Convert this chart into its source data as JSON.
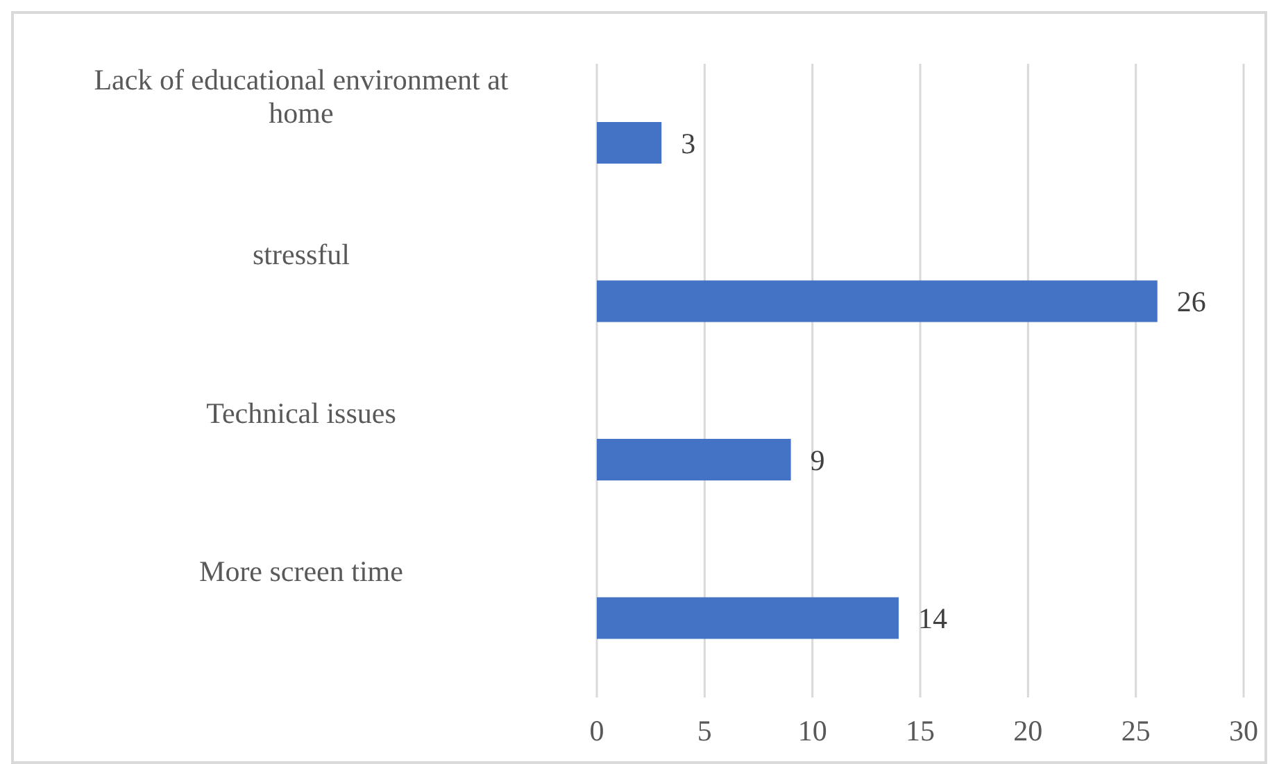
{
  "chart_data": {
    "type": "bar",
    "orientation": "horizontal",
    "categories": [
      "Lack of educational environment at home",
      "stressful",
      "Technical issues",
      "More screen time"
    ],
    "values": [
      3,
      26,
      9,
      14
    ],
    "color": "#4472c4",
    "xlim": [
      0,
      30
    ],
    "xticks": [
      0,
      5,
      10,
      15,
      20,
      25,
      30
    ],
    "grid": "x",
    "data_labels": true
  }
}
